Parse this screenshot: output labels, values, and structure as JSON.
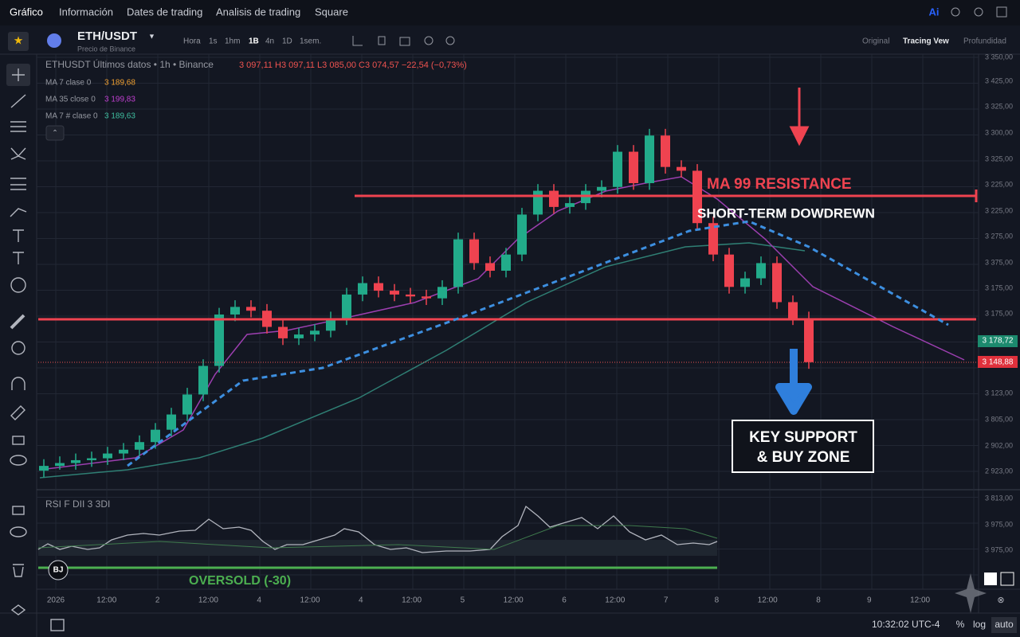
{
  "nav": {
    "items": [
      "Gráfico",
      "Información",
      "Dates de trading",
      "Analisis de trading",
      "Square"
    ],
    "ai": "Ai"
  },
  "toolbar": {
    "symbol": "ETH/USDT",
    "source": "Precio de Binance",
    "intervals": [
      "Hora",
      "1s",
      "1hm",
      "1B",
      "4n",
      "1D",
      "1sem."
    ],
    "views": [
      "Original",
      "Tracing Vew",
      "Profundidad"
    ]
  },
  "legend": {
    "title": "ETHUSDT Últimos datos • 1h • Binance",
    "ohlc": "3 097,11  H3 097,11  L3 085,00  C3 074,57  −22,54 (−0,73%)",
    "ma": [
      {
        "name": "MA 7 clase 0",
        "value": "3 189,68"
      },
      {
        "name": "MA 35 close 0",
        "value": "3 199,83"
      },
      {
        "name": "MA 7 # clase 0",
        "value": "3 189,63"
      }
    ]
  },
  "price_chart": {
    "ylim": [
      2900,
      3360
    ],
    "candles": [
      [
        2920,
        2932,
        2913,
        2925
      ],
      [
        2925,
        2935,
        2921,
        2928
      ],
      [
        2928,
        2938,
        2921,
        2931
      ],
      [
        2931,
        2940,
        2924,
        2933
      ],
      [
        2933,
        2945,
        2926,
        2938
      ],
      [
        2938,
        2949,
        2931,
        2942
      ],
      [
        2942,
        2957,
        2935,
        2950
      ],
      [
        2950,
        2970,
        2943,
        2963
      ],
      [
        2963,
        2986,
        2956,
        2979
      ],
      [
        2979,
        3007,
        2972,
        3000
      ],
      [
        3000,
        3037,
        2993,
        3030
      ],
      [
        3030,
        3091,
        3023,
        3084
      ],
      [
        3084,
        3099,
        3077,
        3092
      ],
      [
        3092,
        3099,
        3081,
        3088
      ],
      [
        3088,
        3095,
        3064,
        3071
      ],
      [
        3071,
        3078,
        3052,
        3059
      ],
      [
        3059,
        3070,
        3052,
        3063
      ],
      [
        3063,
        3074,
        3056,
        3067
      ],
      [
        3067,
        3087,
        3060,
        3080
      ],
      [
        3080,
        3112,
        3073,
        3105
      ],
      [
        3105,
        3124,
        3098,
        3117
      ],
      [
        3117,
        3124,
        3102,
        3109
      ],
      [
        3109,
        3116,
        3098,
        3105
      ],
      [
        3105,
        3112,
        3096,
        3103
      ],
      [
        3103,
        3110,
        3094,
        3101
      ],
      [
        3101,
        3120,
        3094,
        3113
      ],
      [
        3113,
        3170,
        3106,
        3163
      ],
      [
        3163,
        3170,
        3131,
        3138
      ],
      [
        3138,
        3145,
        3123,
        3130
      ],
      [
        3130,
        3154,
        3123,
        3147
      ],
      [
        3147,
        3196,
        3140,
        3189
      ],
      [
        3189,
        3221,
        3182,
        3214
      ],
      [
        3214,
        3221,
        3190,
        3197
      ],
      [
        3197,
        3208,
        3190,
        3201
      ],
      [
        3201,
        3221,
        3194,
        3214
      ],
      [
        3214,
        3225,
        3207,
        3218
      ],
      [
        3218,
        3262,
        3211,
        3255
      ],
      [
        3255,
        3262,
        3215,
        3222
      ],
      [
        3222,
        3279,
        3215,
        3272
      ],
      [
        3272,
        3279,
        3232,
        3239
      ],
      [
        3239,
        3246,
        3228,
        3235
      ],
      [
        3235,
        3242,
        3173,
        3180
      ],
      [
        3180,
        3187,
        3140,
        3147
      ],
      [
        3147,
        3154,
        3106,
        3113
      ],
      [
        3113,
        3129,
        3106,
        3122
      ],
      [
        3122,
        3145,
        3115,
        3138
      ],
      [
        3138,
        3145,
        3090,
        3097
      ],
      [
        3097,
        3104,
        3073,
        3080
      ],
      [
        3080,
        3087,
        3027,
        3034
      ]
    ],
    "price_labels": [
      "3 350,00",
      "3 425,00",
      "3 325,00",
      "3 300,00",
      "3 325,00",
      "3 225,00",
      "3 225,00",
      "3 275,00",
      "3 375,00",
      "3 175,00",
      "3 175,00",
      "3 123,00",
      "3 805,00",
      "2 902,00",
      "2 923,00"
    ],
    "price_tags": [
      "3 178,72",
      "3 148,88"
    ]
  },
  "annotations": {
    "resistance": "MA 99 RESISTANCE",
    "downtrend": "SHORT-TERM DOWDREWN",
    "support": [
      "KEY SUPPORT",
      "& BUY ZONE"
    ]
  },
  "rsi": {
    "label": "RSI F DII 3 3DI",
    "oversold": "OVERSOLD (-30)",
    "labels": [
      "3 813,00",
      "3 975,00",
      "3 975,00"
    ],
    "badge": "BJ"
  },
  "time_axis": [
    "2026",
    "12:00",
    "2",
    "12:00",
    "4",
    "12:00",
    "4",
    "12:00",
    "5",
    "12:00",
    "6",
    "12:00",
    "7",
    "8",
    "12:00",
    "8",
    "9",
    "12:00"
  ],
  "status": {
    "clock": "10:32:02 UTC-4",
    "buttons": [
      "%",
      "log",
      "auto"
    ]
  }
}
